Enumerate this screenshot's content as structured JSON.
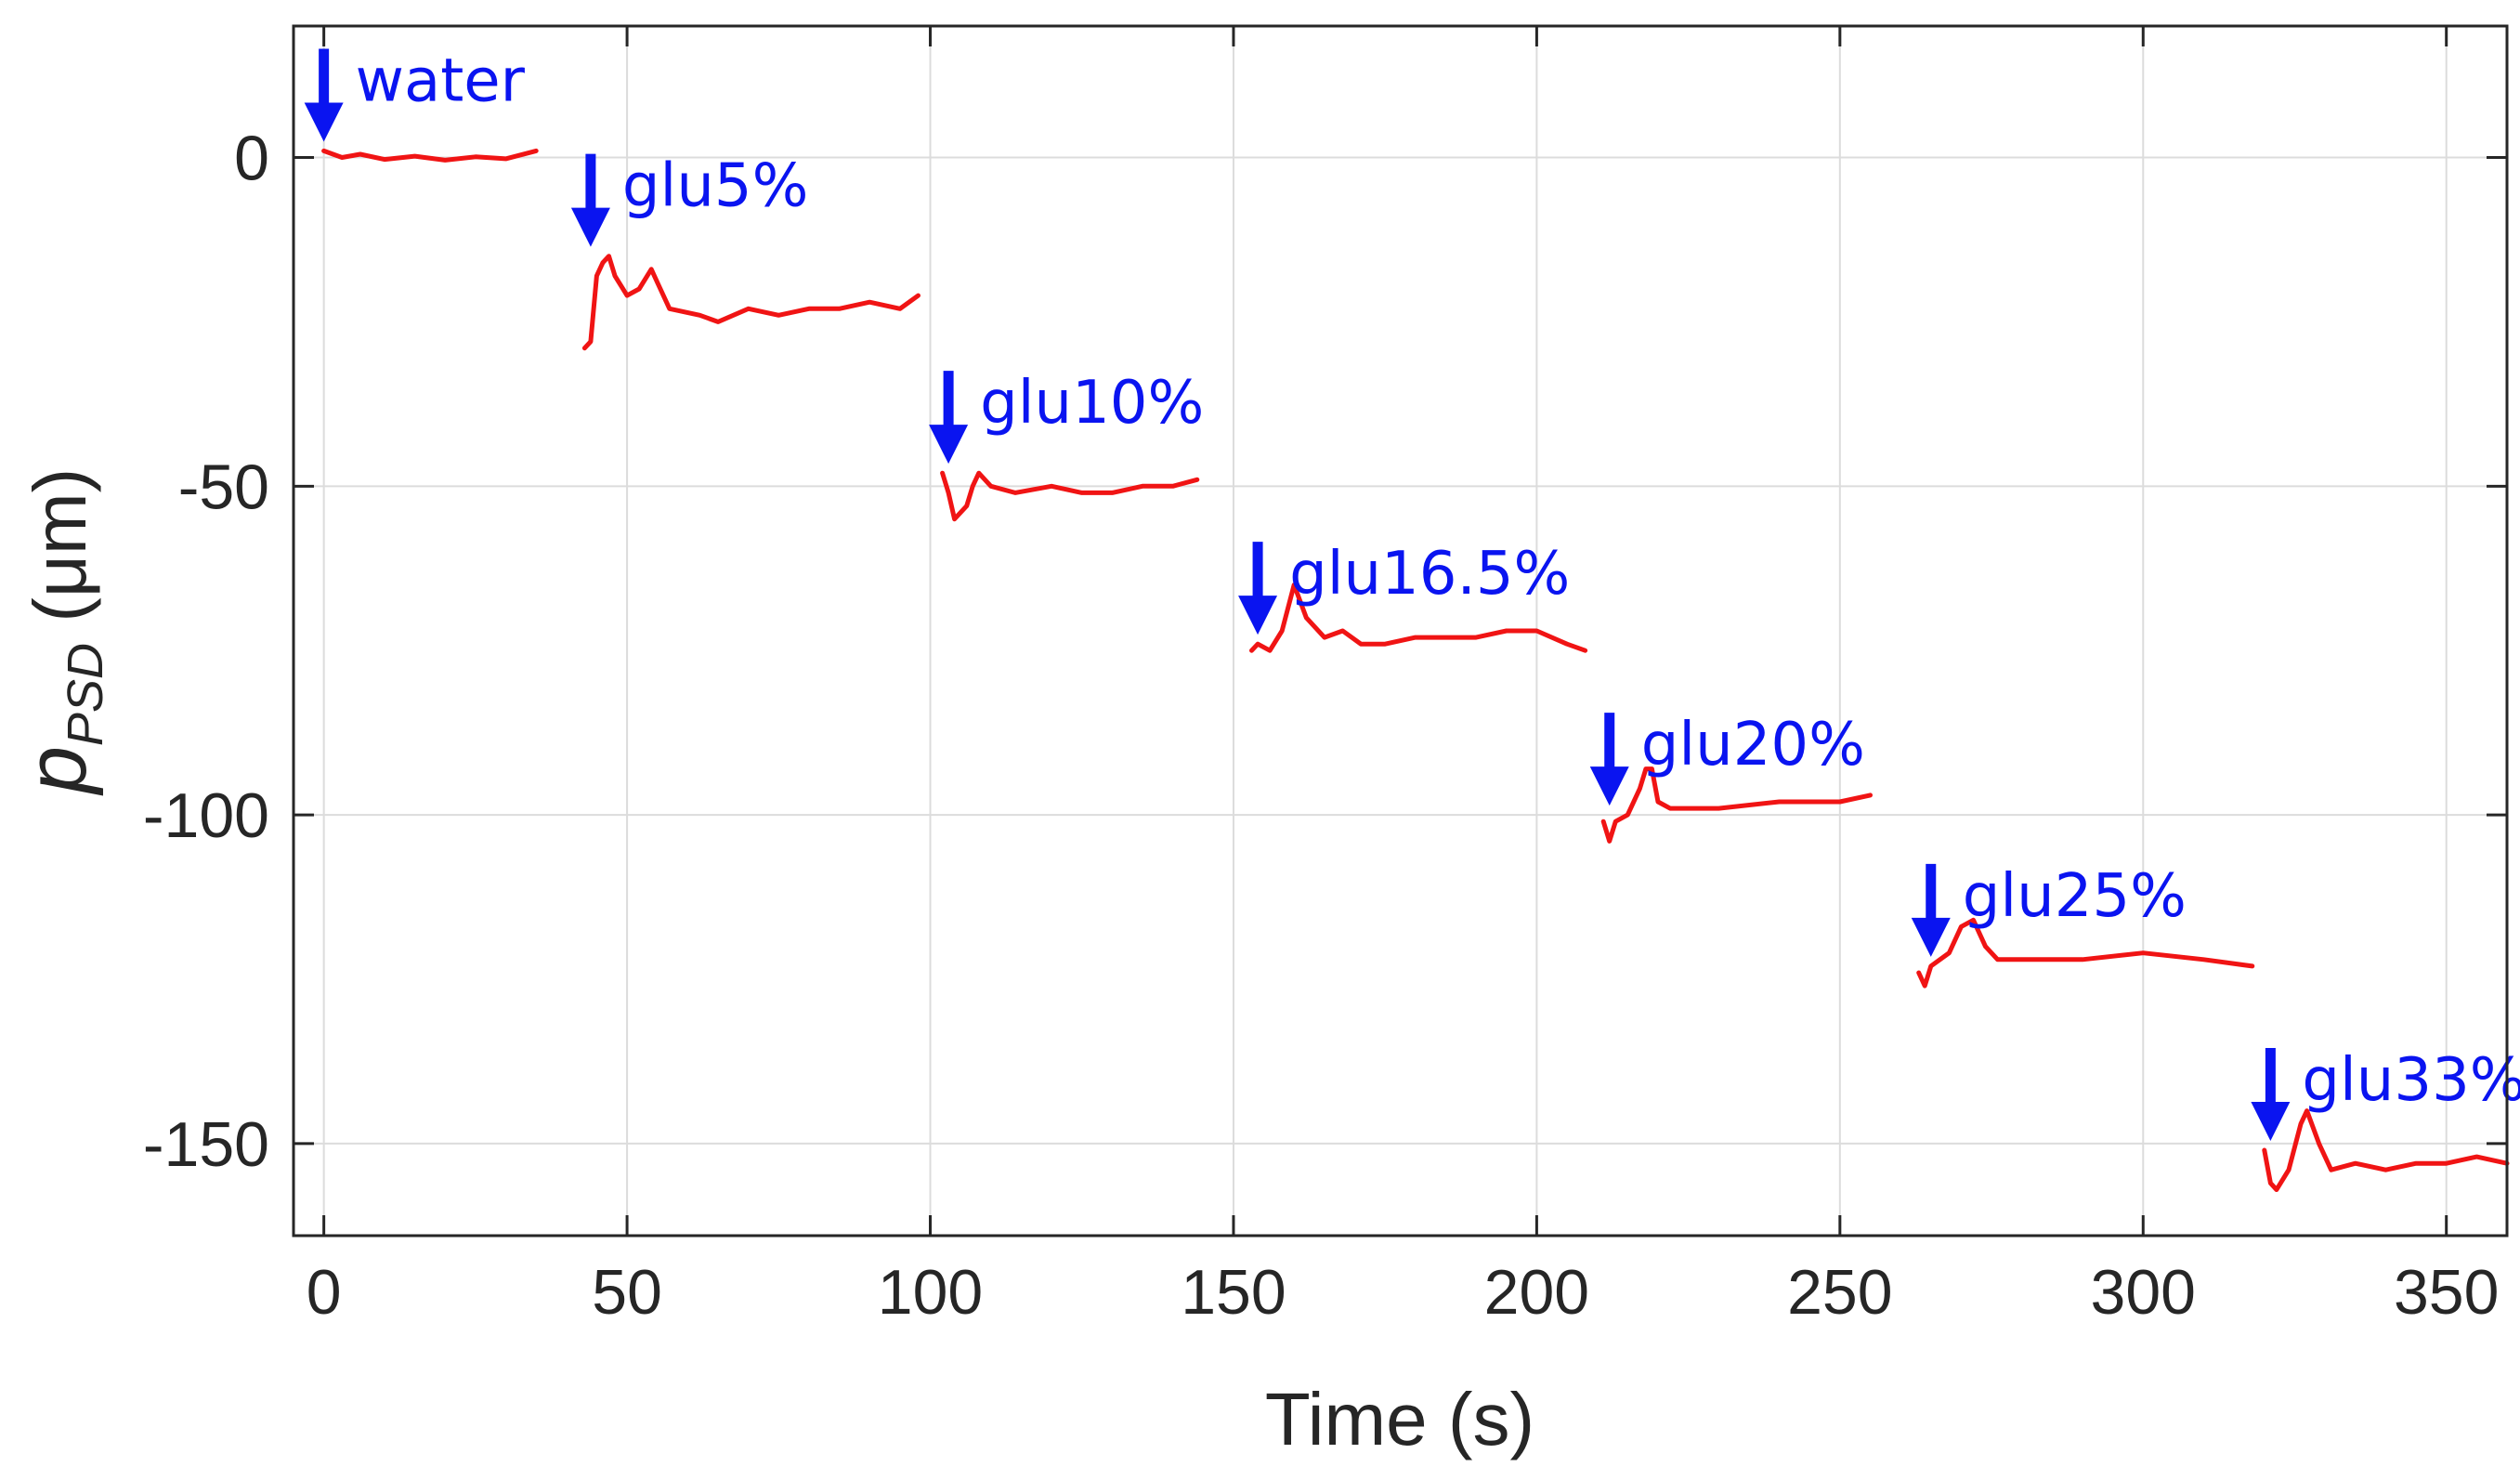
{
  "chart_data": {
    "type": "line",
    "title": "",
    "xlabel": "Time (s)",
    "ylabel": {
      "main": "p",
      "subscript": "PSD",
      "unit": " (μm)"
    },
    "xlim": [
      -5,
      360
    ],
    "ylim": [
      -164,
      20
    ],
    "xticks": [
      0,
      50,
      100,
      150,
      200,
      250,
      300,
      350
    ],
    "yticks": [
      0,
      -50,
      -100,
      -150
    ],
    "grid": true,
    "line_color": "#f01414",
    "annotation_color": "#0a14f0",
    "segments": [
      {
        "label": "water",
        "arrow_x": 0,
        "points": [
          [
            0,
            1
          ],
          [
            3,
            0
          ],
          [
            6,
            0.5
          ],
          [
            10,
            -0.3
          ],
          [
            15,
            0.2
          ],
          [
            20,
            -0.4
          ],
          [
            25,
            0.1
          ],
          [
            30,
            -0.2
          ],
          [
            35,
            1
          ]
        ]
      },
      {
        "label": "glu5%",
        "arrow_x": 44,
        "points": [
          [
            43,
            -29
          ],
          [
            44,
            -28
          ],
          [
            45,
            -18
          ],
          [
            46,
            -16
          ],
          [
            47,
            -15
          ],
          [
            48,
            -18
          ],
          [
            50,
            -21
          ],
          [
            52,
            -20
          ],
          [
            54,
            -17
          ],
          [
            55,
            -19
          ],
          [
            57,
            -23
          ],
          [
            62,
            -24
          ],
          [
            65,
            -25
          ],
          [
            70,
            -23
          ],
          [
            75,
            -24
          ],
          [
            80,
            -23
          ],
          [
            85,
            -23
          ],
          [
            90,
            -22
          ],
          [
            95,
            -23
          ],
          [
            98,
            -21
          ]
        ]
      },
      {
        "label": "glu10%",
        "arrow_x": 103,
        "points": [
          [
            102,
            -48
          ],
          [
            103,
            -51
          ],
          [
            104,
            -55
          ],
          [
            106,
            -53
          ],
          [
            107,
            -50
          ],
          [
            108,
            -48
          ],
          [
            110,
            -50
          ],
          [
            114,
            -51
          ],
          [
            120,
            -50
          ],
          [
            125,
            -51
          ],
          [
            130,
            -51
          ],
          [
            135,
            -50
          ],
          [
            140,
            -50
          ],
          [
            144,
            -49
          ]
        ]
      },
      {
        "label": "glu16.5%",
        "arrow_x": 154,
        "points": [
          [
            153,
            -75
          ],
          [
            154,
            -74
          ],
          [
            156,
            -75
          ],
          [
            158,
            -72
          ],
          [
            160,
            -65
          ],
          [
            162,
            -70
          ],
          [
            165,
            -73
          ],
          [
            168,
            -72
          ],
          [
            171,
            -74
          ],
          [
            175,
            -74
          ],
          [
            180,
            -73
          ],
          [
            185,
            -73
          ],
          [
            190,
            -73
          ],
          [
            195,
            -72
          ],
          [
            200,
            -72
          ],
          [
            205,
            -74
          ],
          [
            208,
            -75
          ]
        ]
      },
      {
        "label": "glu20%",
        "arrow_x": 212,
        "points": [
          [
            211,
            -101
          ],
          [
            212,
            -104
          ],
          [
            213,
            -101
          ],
          [
            215,
            -100
          ],
          [
            217,
            -96
          ],
          [
            218,
            -93
          ],
          [
            219,
            -93
          ],
          [
            220,
            -98
          ],
          [
            222,
            -99
          ],
          [
            230,
            -99
          ],
          [
            240,
            -98
          ],
          [
            250,
            -98
          ],
          [
            255,
            -97
          ]
        ]
      },
      {
        "label": "glu25%",
        "arrow_x": 265,
        "points": [
          [
            263,
            -124
          ],
          [
            264,
            -126
          ],
          [
            265,
            -123
          ],
          [
            268,
            -121
          ],
          [
            270,
            -117
          ],
          [
            272,
            -116
          ],
          [
            274,
            -120
          ],
          [
            276,
            -122
          ],
          [
            280,
            -122
          ],
          [
            290,
            -122
          ],
          [
            300,
            -121
          ],
          [
            310,
            -122
          ],
          [
            318,
            -123
          ]
        ]
      },
      {
        "label": "glu33%",
        "arrow_x": 321,
        "points": [
          [
            320,
            -151
          ],
          [
            321,
            -156
          ],
          [
            322,
            -157
          ],
          [
            324,
            -154
          ],
          [
            326,
            -147
          ],
          [
            327,
            -145
          ],
          [
            329,
            -150
          ],
          [
            331,
            -154
          ],
          [
            335,
            -153
          ],
          [
            340,
            -154
          ],
          [
            345,
            -153
          ],
          [
            350,
            -153
          ],
          [
            355,
            -152
          ],
          [
            360,
            -153
          ]
        ]
      }
    ]
  }
}
